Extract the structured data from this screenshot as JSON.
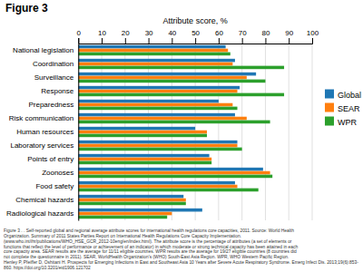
{
  "chart_data": {
    "type": "bar",
    "orientation": "horizontal",
    "title": "Figure 3",
    "xlabel": "Attribute score, %",
    "categories": [
      "National legislation",
      "Coordination",
      "Surveillance",
      "Response",
      "Preparedness",
      "Risk communication",
      "Human resources",
      "Laboratory services",
      "Points of entry",
      "Zoonoses",
      "Food safety",
      "Chemical hazards",
      "Radiological hazards"
    ],
    "series": [
      {
        "name": "Global",
        "values": [
          63,
          67,
          76,
          69,
          60,
          67,
          50,
          68,
          56,
          79,
          67,
          45,
          53
        ]
      },
      {
        "name": "SEAR",
        "values": [
          64,
          66,
          72,
          68,
          66,
          72,
          55,
          68,
          57,
          82,
          68,
          46,
          40
        ]
      },
      {
        "name": "WPR",
        "values": [
          65,
          88,
          80,
          88,
          68,
          82,
          55,
          70,
          57,
          83,
          77,
          46,
          38
        ]
      }
    ],
    "xlim": [
      0,
      100
    ],
    "xticks": [
      0,
      10,
      20,
      30,
      40,
      50,
      60,
      70,
      80,
      90,
      100
    ],
    "grid": true,
    "legend": "right",
    "annotations": [
      "Figure 3 . . Self-reported global and regional average attribute scores for international health regulations core capacities, 2011. Source: World Health",
      "Organization. Summary of 2011 States Parties Report on International Health Regulations Core Capacity Implementation.",
      "(www.who.int/ihr/publications/WHO_HSE_GCR_2012-10eng/en/index.html). The attribute score is the percentage of attributes (a set of elements or",
      "functions that reflect the level of performance or achievement of an indicator) in which moderate or strong technical capacity has been attained in each",
      "core capacity area. SEAR results are the average for 11/11 eligible countries. WPR results are the average for 19/27 eligible countries (8 countries did",
      "not complete the questionnaire in 2011). SEAR, WorldHealth Organization's (WHO) South-East Asia Region. WPR, WHO Western Pacific Region.",
      "Henley P, Pfeiffer D, Oshitani H. Prospects for Emerging Infections in East and Southeast Asia 10 Years after Severe Acute Respiratory Syndrome. Emerg Infect Dis. 2013;19(6):853-",
      "860. https://doi.org/10.3201/eid1906.121702"
    ]
  }
}
